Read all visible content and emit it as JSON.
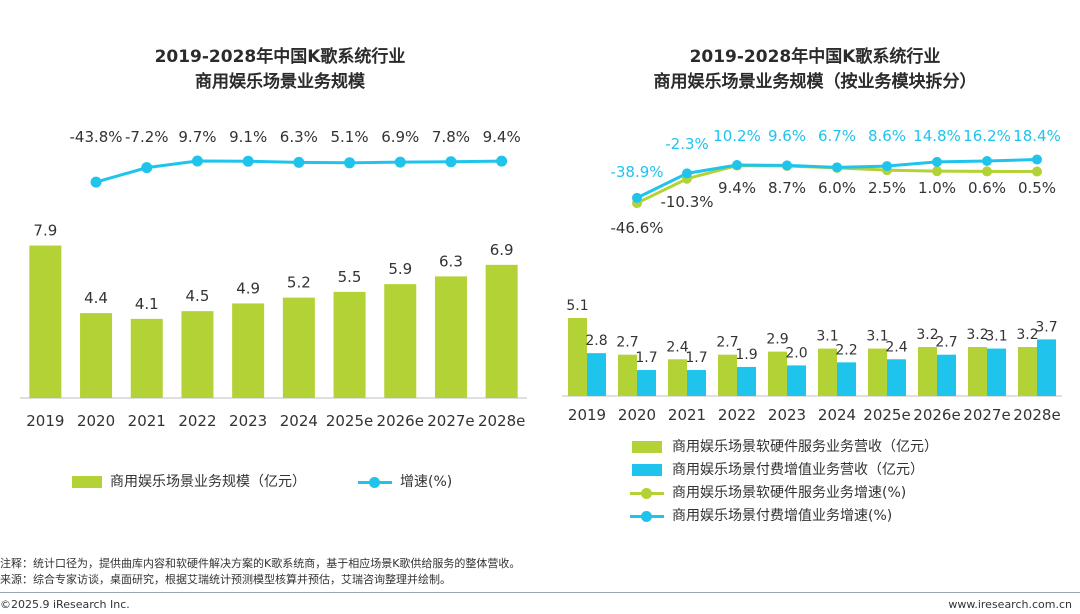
{
  "colors": {
    "green": "#b2d235",
    "blue": "#1fc4ed",
    "axis": "#bfbfbf",
    "text": "#333333"
  },
  "chart_data": [
    {
      "type": "bar+line",
      "title_line1": "2019-2028年中国K歌系统行业",
      "title_line2": "商用娱乐场景业务规模",
      "categories": [
        "2019",
        "2020",
        "2021",
        "2022",
        "2023",
        "2024",
        "2025e",
        "2026e",
        "2027e",
        "2028e"
      ],
      "bar_series": {
        "name": "商用娱乐场景业务规模（亿元）",
        "values": [
          7.9,
          4.4,
          4.1,
          4.5,
          4.9,
          5.2,
          5.5,
          5.9,
          6.3,
          6.9
        ]
      },
      "line_series": {
        "name": "增速(%)",
        "values": [
          null,
          -43.8,
          -7.2,
          9.7,
          9.1,
          6.3,
          5.1,
          6.9,
          7.8,
          9.4
        ],
        "labels": [
          "",
          "-43.8%",
          "-7.2%",
          "9.7%",
          "9.1%",
          "6.3%",
          "5.1%",
          "6.9%",
          "7.8%",
          "9.4%"
        ]
      }
    },
    {
      "type": "grouped-bar+line",
      "title_line1": "2019-2028年中国K歌系统行业",
      "title_line2": "商用娱乐场景业务规模（按业务模块拆分）",
      "categories": [
        "2019",
        "2020",
        "2021",
        "2022",
        "2023",
        "2024",
        "2025e",
        "2026e",
        "2027e",
        "2028e"
      ],
      "bar_series": [
        {
          "name": "商用娱乐场景软硬件服务业务营收（亿元）",
          "values": [
            5.1,
            2.7,
            2.4,
            2.7,
            2.9,
            3.1,
            3.1,
            3.2,
            3.2,
            3.2
          ]
        },
        {
          "name": "商用娱乐场景付费增值业务营收（亿元）",
          "values": [
            2.8,
            1.7,
            1.7,
            1.9,
            2.0,
            2.2,
            2.4,
            2.7,
            3.1,
            3.7
          ]
        }
      ],
      "line_series": [
        {
          "name": "商用娱乐场景软硬件服务业务增速(%)",
          "values": [
            null,
            -46.6,
            -10.3,
            9.4,
            8.7,
            6.0,
            2.5,
            1.0,
            0.6,
            0.5
          ],
          "labels": [
            "",
            "-46.6%",
            "-10.3%",
            "9.4%",
            "8.7%",
            "6.0%",
            "2.5%",
            "1.0%",
            "0.6%",
            "0.5%"
          ]
        },
        {
          "name": "商用娱乐场景付费增值业务增速(%)",
          "values": [
            null,
            -38.9,
            -2.3,
            10.2,
            9.6,
            6.7,
            8.6,
            14.8,
            16.2,
            18.4
          ],
          "labels": [
            "",
            "-38.9%",
            "-2.3%",
            "10.2%",
            "9.6%",
            "6.7%",
            "8.6%",
            "14.8%",
            "16.2%",
            "18.4%"
          ]
        }
      ]
    }
  ],
  "notes": {
    "line1": "注释：统计口径为，提供曲库内容和软硬件解决方案的K歌系统商，基于相应场景K歌供给服务的整体营收。",
    "line2": "来源：综合专家访谈，桌面研究，根据艾瑞统计预测模型核算并预估，艾瑞咨询整理并绘制。"
  },
  "footer": {
    "left": "©2025.9 iResearch Inc.",
    "right": "www.iresearch.com.cn"
  }
}
